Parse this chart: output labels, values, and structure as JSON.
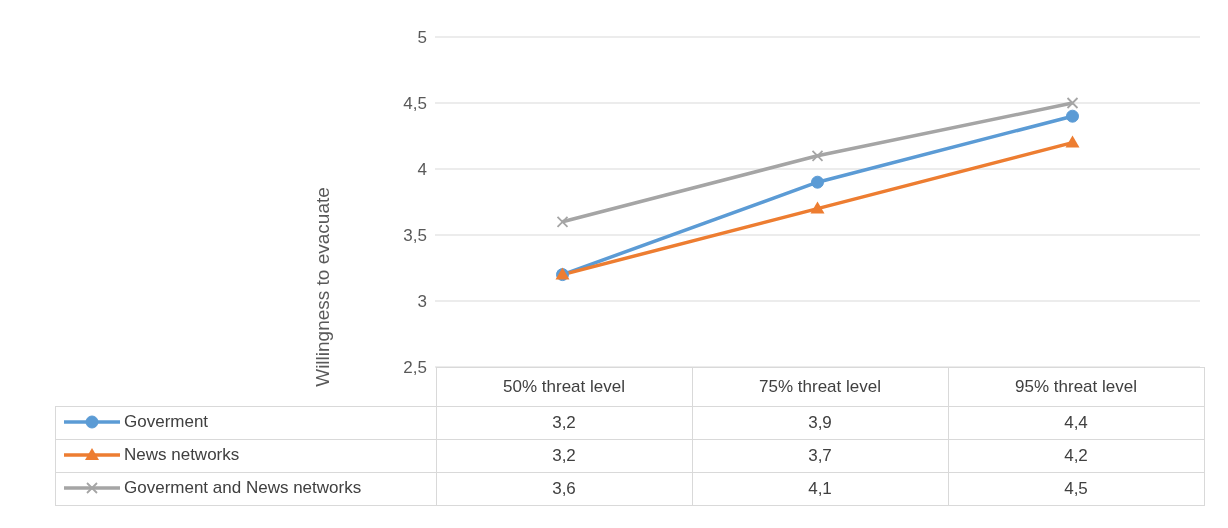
{
  "chart_data": {
    "type": "line",
    "ylabel": "Willingness to evacuate",
    "categories": [
      "50% threat level",
      "75% threat level",
      "95% threat level"
    ],
    "series": [
      {
        "name": "Goverment",
        "color": "#5b9bd5",
        "marker": "circle",
        "values": [
          3.2,
          3.9,
          4.4
        ],
        "value_labels": [
          "3,2",
          "3,9",
          "4,4"
        ]
      },
      {
        "name": "News networks",
        "color": "#ed7d31",
        "marker": "triangle",
        "values": [
          3.2,
          3.7,
          4.2
        ],
        "value_labels": [
          "3,2",
          "3,7",
          "4,2"
        ]
      },
      {
        "name": "Goverment and News networks",
        "color": "#a5a5a5",
        "marker": "cross",
        "values": [
          3.6,
          4.1,
          4.5
        ],
        "value_labels": [
          "3,6",
          "4,1",
          "4,5"
        ]
      }
    ],
    "ylim": [
      2.5,
      5
    ],
    "yticks": [
      {
        "value": 2.5,
        "label": "2,5"
      },
      {
        "value": 3,
        "label": "3"
      },
      {
        "value": 3.5,
        "label": "3,5"
      },
      {
        "value": 4,
        "label": "4"
      },
      {
        "value": 4.5,
        "label": "4,5"
      },
      {
        "value": 5,
        "label": "5"
      }
    ],
    "grid": "y",
    "legend": "bottom"
  }
}
